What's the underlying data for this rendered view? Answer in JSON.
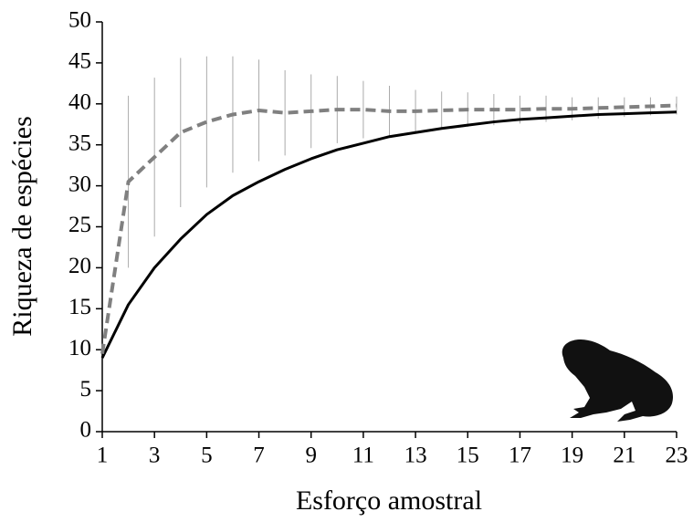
{
  "chart_data": {
    "type": "line",
    "x_label": "Esforço amostral",
    "y_label": "Riqueza de espécies",
    "x": [
      1,
      2,
      3,
      4,
      5,
      6,
      7,
      8,
      9,
      10,
      11,
      12,
      13,
      14,
      15,
      16,
      17,
      18,
      19,
      20,
      21,
      22,
      23
    ],
    "series": [
      {
        "color": "#000000",
        "dashed": false,
        "values": [
          9,
          15.5,
          20,
          23.5,
          26.5,
          28.8,
          30.5,
          32,
          33.3,
          34.4,
          35.2,
          36,
          36.5,
          37,
          37.4,
          37.8,
          38.1,
          38.3,
          38.5,
          38.7,
          38.8,
          38.9,
          39
        ]
      },
      {
        "color": "#808080",
        "dashed": true,
        "error_color": "#aaaaaa",
        "values": [
          9.5,
          30.5,
          33.5,
          36.5,
          37.8,
          38.7,
          39.2,
          38.9,
          39.1,
          39.3,
          39.3,
          39.1,
          39.1,
          39.2,
          39.3,
          39.3,
          39.3,
          39.4,
          39.4,
          39.5,
          39.6,
          39.7,
          39.8
        ],
        "errors": [
          null,
          10.5,
          9.7,
          9.1,
          8,
          7.1,
          6.2,
          5.2,
          4.5,
          4.1,
          3.5,
          3.1,
          2.6,
          2.3,
          2.1,
          1.9,
          1.7,
          1.6,
          1.4,
          1.3,
          1.2,
          1.1,
          1.1
        ]
      }
    ],
    "xlim": [
      1,
      23
    ],
    "xticks": [
      1,
      3,
      5,
      7,
      9,
      11,
      13,
      15,
      17,
      19,
      21,
      23
    ],
    "ylim": [
      0,
      50
    ],
    "yticks": [
      0,
      5,
      10,
      15,
      20,
      25,
      30,
      35,
      40,
      45,
      50
    ],
    "grid": false
  }
}
